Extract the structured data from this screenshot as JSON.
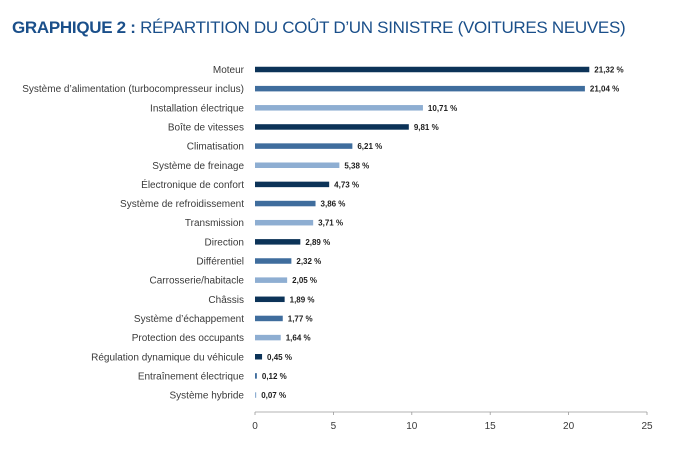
{
  "title": {
    "prefix": "GRAPHIQUE  2 :",
    "text": "RÉPARTITION DU COÛT D’UN SINISTRE (VOITURES NEUVES)"
  },
  "colors": {
    "dark": "#0c3358",
    "mid": "#3f6d9d",
    "light": "#8eaed2",
    "title": "#1a4f8a"
  },
  "chart_data": {
    "type": "bar",
    "orientation": "horizontal",
    "title": "RÉPARTITION DU COÛT D’UN SINISTRE (VOITURES NEUVES)",
    "categories": [
      "Moteur",
      "Système d’alimentation (turbocompresseur inclus)",
      "Installation électrique",
      "Boîte de vitesses",
      "Climatisation",
      "Système de freinage",
      "Électronique de confort",
      "Système de refroidissement",
      "Transmission",
      "Direction",
      "Différentiel",
      "Carrosserie/habitacle",
      "Châssis",
      "Système d’échappement",
      "Protection des occupants",
      "Régulation dynamique du véhicule",
      "Entraînement électrique",
      "Système hybride"
    ],
    "values": [
      21.32,
      21.04,
      10.71,
      9.81,
      6.21,
      5.38,
      4.73,
      3.86,
      3.71,
      2.89,
      2.32,
      2.05,
      1.89,
      1.77,
      1.64,
      0.45,
      0.12,
      0.07
    ],
    "value_labels": [
      "21,32 %",
      "21,04 %",
      "10,71 %",
      "9,81 %",
      "6,21 %",
      "5,38 %",
      "4,73 %",
      "3,86 %",
      "3,71 %",
      "2,89 %",
      "2,32 %",
      "2,05 %",
      "1,89 %",
      "1,77 %",
      "1,64 %",
      "0,45 %",
      "0,12 %",
      "0,07 %"
    ],
    "bar_shades": [
      "dark",
      "mid",
      "light",
      "dark",
      "mid",
      "light",
      "dark",
      "mid",
      "light",
      "dark",
      "mid",
      "light",
      "dark",
      "mid",
      "light",
      "dark",
      "mid",
      "light"
    ],
    "xlim": [
      0,
      25
    ],
    "xticks": [
      0,
      5,
      10,
      15,
      20,
      25
    ],
    "xtick_labels": [
      "0",
      "5",
      "10",
      "15",
      "20",
      "25"
    ],
    "grid": false,
    "legend": "none"
  }
}
